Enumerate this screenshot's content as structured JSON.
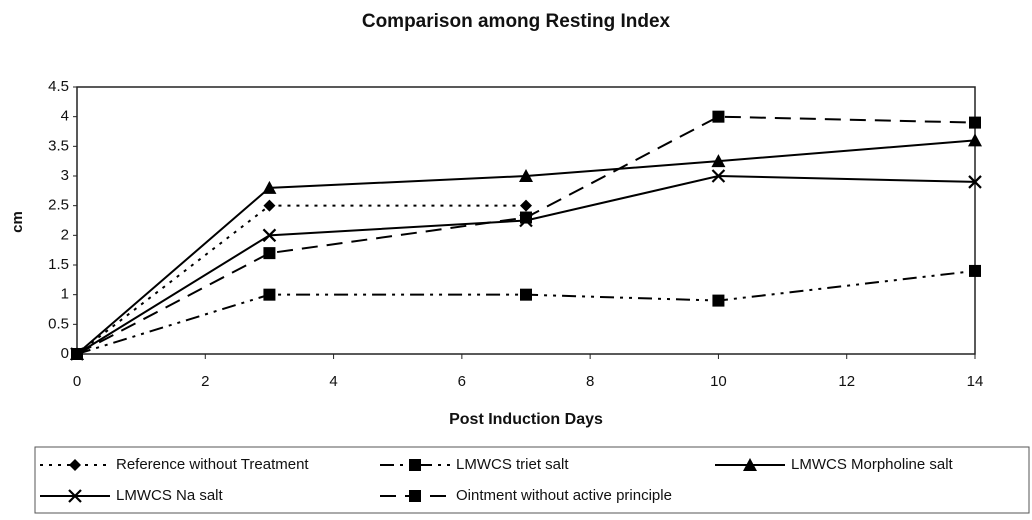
{
  "chart_data": {
    "type": "line",
    "title": "Comparison among Resting Index",
    "x_label": "Post Induction Days",
    "y_label": "cm",
    "x": [
      0,
      3,
      7,
      10,
      14
    ],
    "xlim": [
      0,
      14
    ],
    "xticks": [
      0,
      2,
      4,
      6,
      8,
      10,
      12,
      14
    ],
    "ylim": [
      0,
      4.5
    ],
    "yticks": [
      0,
      0.5,
      1,
      1.5,
      2,
      2.5,
      3,
      3.5,
      4,
      4.5
    ],
    "grid": false,
    "legend": "bottom",
    "series": [
      {
        "name": "Reference without Treatment",
        "color": "#000000",
        "dash": "dotted",
        "marker": "diamond",
        "values": [
          0,
          2.5,
          2.5,
          null,
          null
        ]
      },
      {
        "name": "LMWCS triet salt",
        "color": "#000000",
        "dash": "dash-dot-dot",
        "marker": "square",
        "values": [
          0,
          1,
          1,
          0.9,
          1.4
        ]
      },
      {
        "name": "LMWCS Morpholine salt",
        "color": "#000000",
        "dash": "solid",
        "marker": "triangle",
        "values": [
          0,
          2.8,
          3,
          3.25,
          3.6
        ]
      },
      {
        "name": "LMWCS Na salt",
        "color": "#000000",
        "dash": "solid",
        "marker": "x",
        "values": [
          0,
          2,
          2.25,
          3,
          2.9
        ]
      },
      {
        "name": "Ointment without active principle",
        "color": "#000000",
        "dash": "dashed",
        "marker": "square",
        "values": [
          0,
          1.7,
          2.3,
          4,
          3.9
        ]
      }
    ]
  }
}
